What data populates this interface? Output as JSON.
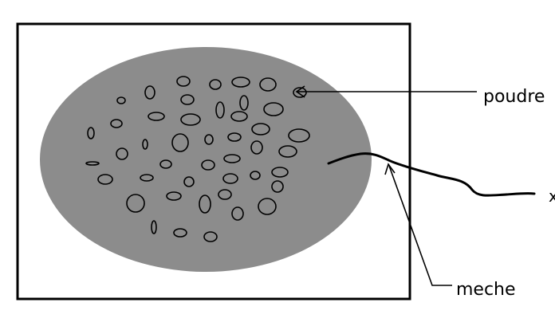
{
  "labels": {
    "powder": "poudre",
    "fuse": "meche",
    "right_edge": "x"
  },
  "colors": {
    "background": "#ffffff",
    "frame": "#000000",
    "powder": "#8c8c8c",
    "ink": "#000000"
  }
}
